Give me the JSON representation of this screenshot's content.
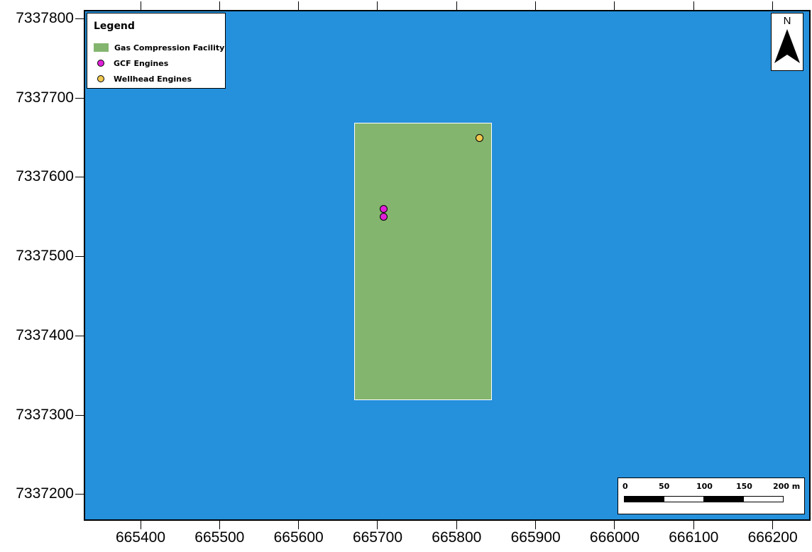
{
  "map": {
    "background_color": "#2590dc",
    "x_axis": {
      "labels": [
        "665400",
        "665500",
        "665600",
        "665700",
        "665800",
        "665900",
        "666000",
        "666100",
        "666200"
      ]
    },
    "y_axis": {
      "labels": [
        "7337800",
        "7337700",
        "7337600",
        "7337500",
        "7337400",
        "7337300",
        "7337200"
      ]
    },
    "facility": {
      "name": "Gas Compression Facility",
      "color": "#84b56e",
      "x_range": [
        665670,
        665845
      ],
      "y_range": [
        7337318,
        7337668
      ]
    },
    "gcf_engines": [
      {
        "x": 665708,
        "y": 7337559
      },
      {
        "x": 665708,
        "y": 7337549
      }
    ],
    "wellhead_engines": [
      {
        "x": 665829,
        "y": 7337649
      }
    ]
  },
  "legend": {
    "title": "Legend",
    "items": [
      {
        "label": "Gas Compression Facility",
        "color": "#84b56e"
      },
      {
        "label": "GCF Engines",
        "color": "#e020d8"
      },
      {
        "label": "Wellhead Engines",
        "color": "#f0c850"
      }
    ]
  },
  "north_arrow": {
    "label": "N",
    "icon": "north-arrow-icon"
  },
  "scale_bar": {
    "labels": [
      "0",
      "50",
      "100",
      "150",
      "200 m"
    ]
  }
}
